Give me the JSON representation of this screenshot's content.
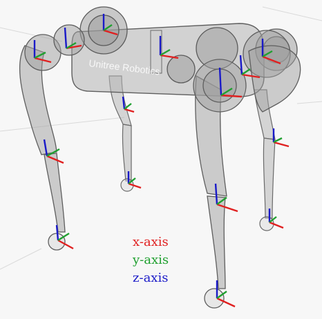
{
  "scene": {
    "body_branding": "Unitree Robotics",
    "colors": {
      "background": "#f7f7f7",
      "grid": "#d9d9d9",
      "link_fill": "#9a9a9a",
      "link_stroke": "#5e5e5e",
      "x_axis": "#e02020",
      "y_axis": "#20a030",
      "z_axis": "#1a1ac8"
    }
  },
  "legend": {
    "x": "x-axis",
    "y": "y-axis",
    "z": "z-axis"
  }
}
